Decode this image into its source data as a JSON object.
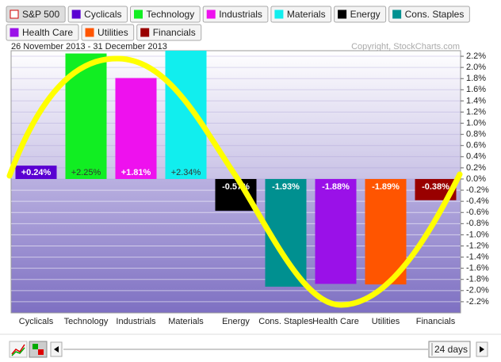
{
  "chart_data": {
    "type": "bar",
    "subtitle": "26 November 2013 - 31 December 2013",
    "copyright": "Copyright, StockCharts.com",
    "legend": [
      {
        "name": "S&P 500",
        "color": "#d40000",
        "checkbox": true
      },
      {
        "name": "Cyclicals",
        "color": "#5a00d2"
      },
      {
        "name": "Technology",
        "color": "#11ee22"
      },
      {
        "name": "Industrials",
        "color": "#ee11ee"
      },
      {
        "name": "Materials",
        "color": "#11eeee"
      },
      {
        "name": "Energy",
        "color": "#000000"
      },
      {
        "name": "Cons. Staples",
        "color": "#009090"
      },
      {
        "name": "Health Care",
        "color": "#9a11e8"
      },
      {
        "name": "Utilities",
        "color": "#ff5500"
      },
      {
        "name": "Financials",
        "color": "#990000"
      }
    ],
    "categories": [
      "Cyclicals",
      "Technology",
      "Industrials",
      "Materials",
      "Energy",
      "Cons. Staples",
      "Health Care",
      "Utilities",
      "Financials"
    ],
    "values": [
      0.24,
      2.25,
      1.81,
      2.34,
      -0.57,
      -1.93,
      -1.88,
      -1.89,
      -0.38
    ],
    "value_labels": [
      "+0.24%",
      "+2.25%",
      "+1.81%",
      "+2.34%",
      "-0.57%",
      "-1.93%",
      "-1.88%",
      "-1.89%",
      "-0.38%"
    ],
    "colors": [
      "#5a00d2",
      "#11ee22",
      "#ee11ee",
      "#11eeee",
      "#000000",
      "#009090",
      "#9a11e8",
      "#ff5500",
      "#990000"
    ],
    "ylim": [
      -2.4,
      2.3
    ],
    "yticks": [
      {
        "value": 2.2,
        "label": "2.2%"
      },
      {
        "value": 2.0,
        "label": "2.0%"
      },
      {
        "value": 1.8,
        "label": "1.8%"
      },
      {
        "value": 1.6,
        "label": "1.6%"
      },
      {
        "value": 1.4,
        "label": "1.4%"
      },
      {
        "value": 1.2,
        "label": "1.2%"
      },
      {
        "value": 1.0,
        "label": "1.0%"
      },
      {
        "value": 0.8,
        "label": "0.8%"
      },
      {
        "value": 0.6,
        "label": "0.6%"
      },
      {
        "value": 0.4,
        "label": "0.4%"
      },
      {
        "value": 0.2,
        "label": "0.2%"
      },
      {
        "value": 0.0,
        "label": "0.0%"
      },
      {
        "value": -0.2,
        "label": "-0.2%"
      },
      {
        "value": -0.4,
        "label": "-0.4%"
      },
      {
        "value": -0.6,
        "label": "-0.6%"
      },
      {
        "value": -0.8,
        "label": "-0.8%"
      },
      {
        "value": -1.0,
        "label": "-1.0%"
      },
      {
        "value": -1.2,
        "label": "-1.2%"
      },
      {
        "value": -1.4,
        "label": "-1.4%"
      },
      {
        "value": -1.6,
        "label": "-1.6%"
      },
      {
        "value": -1.8,
        "label": "-1.8%"
      },
      {
        "value": -2.0,
        "label": "-2.0%"
      },
      {
        "value": -2.2,
        "label": "-2.2%"
      }
    ],
    "grid": true,
    "period_button": "24 days"
  }
}
